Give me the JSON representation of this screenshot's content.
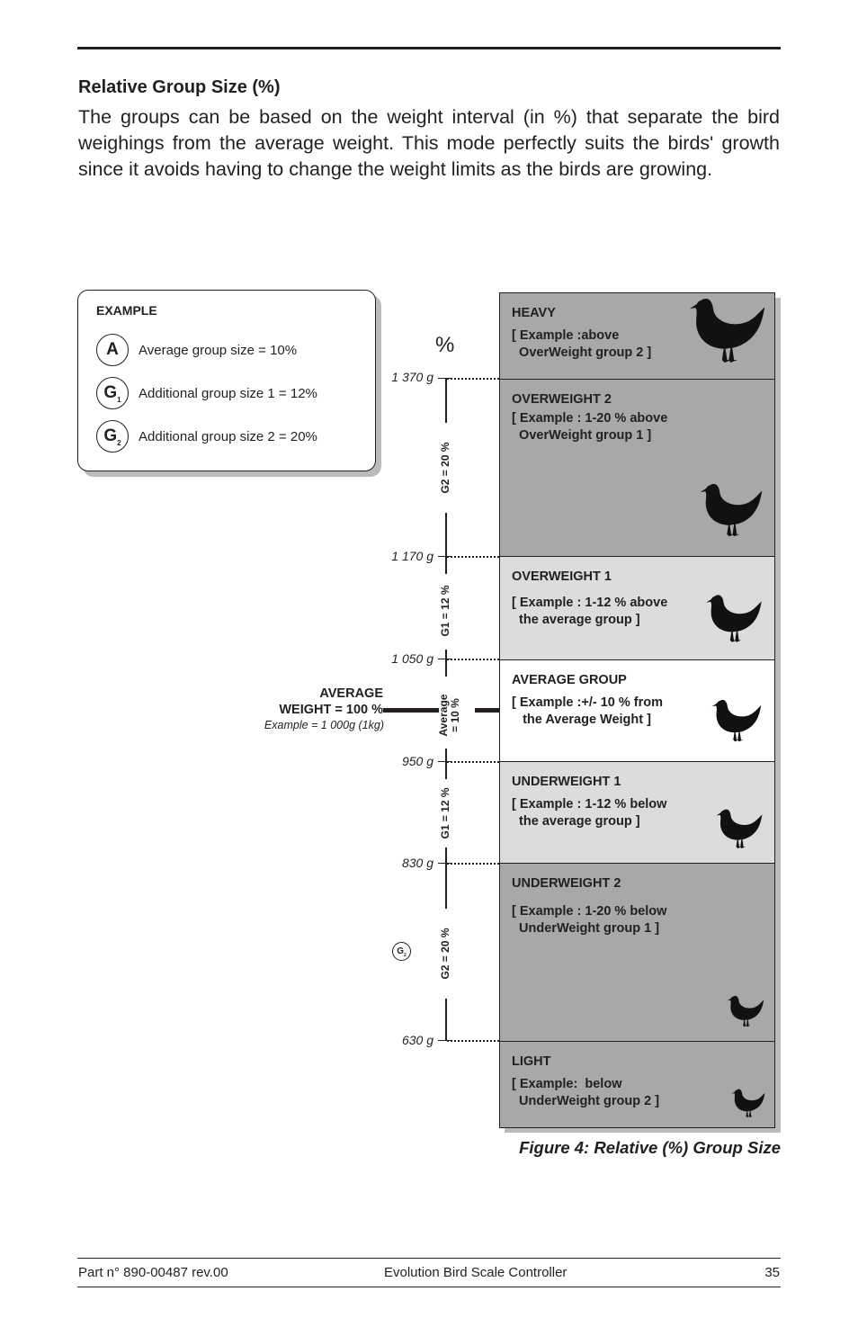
{
  "section_title": "Relative Group Size (%)",
  "intro": "The groups can be based on the weight interval (in %) that separate the bird weighings from the average weight. This mode perfectly suits the birds' growth since it avoids having to change the weight limits as the birds are growing.",
  "example": {
    "title": "EXAMPLE",
    "items": [
      {
        "symbol": "A",
        "sub": "",
        "text": "Average group size = 10%"
      },
      {
        "symbol": "G",
        "sub": "1",
        "text": "Additional group size 1 = 12%"
      },
      {
        "symbol": "G",
        "sub": "2",
        "text": "Additional group size 2 = 20%"
      }
    ]
  },
  "percent_symbol": "%",
  "average": {
    "line1": "AVERAGE",
    "line2": "WEIGHT = 100 %",
    "example": "Example = 1 000g (1kg)"
  },
  "weights": [
    "1 370 g",
    "1 170 g",
    "1 050 g",
    "950 g",
    "830 g",
    "630 g"
  ],
  "intervals": {
    "g2_top": "G2 = 20 %",
    "g1_top": "G1 = 12 %",
    "avg1": "Average",
    "avg2": "= 10 %",
    "g1_bottom": "G1 = 12 %",
    "g2_bottom": "G2 = 20 %"
  },
  "g2_marker": {
    "symbol": "G",
    "sub": "2"
  },
  "groups": [
    {
      "title": "HEAVY",
      "desc": "[ Example :above\n  OverWeight group 2 ]"
    },
    {
      "title": "OVERWEIGHT 2",
      "desc": "[ Example : 1-20 % above\n  OverWeight group 1 ]"
    },
    {
      "title": "OVERWEIGHT 1",
      "desc": "[ Example : 1-12 % above\n  the average group ]"
    },
    {
      "title": "AVERAGE GROUP",
      "desc": "[ Example :+/- 10 % from\n   the Average Weight ]"
    },
    {
      "title": "UNDERWEIGHT 1",
      "desc": "[ Example : 1-12 % below\n  the average group ]"
    },
    {
      "title": "UNDERWEIGHT 2",
      "desc": "[ Example : 1-20 % below\n  UnderWeight group 1 ]"
    },
    {
      "title": "LIGHT",
      "desc": "[ Example:  below\n  UnderWeight group 2 ]"
    }
  ],
  "figure_caption": "Figure 4: Relative (%) Group Size",
  "footer": {
    "part": "Part n° 890-00487 rev.00",
    "product": "Evolution Bird Scale Controller",
    "page": "35"
  }
}
